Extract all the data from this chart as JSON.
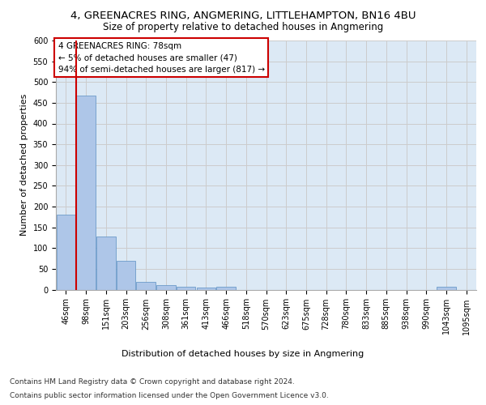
{
  "title_line1": "4, GREENACRES RING, ANGMERING, LITTLEHAMPTON, BN16 4BU",
  "title_line2": "Size of property relative to detached houses in Angmering",
  "xlabel": "Distribution of detached houses by size in Angmering",
  "ylabel": "Number of detached properties",
  "bar_labels": [
    "46sqm",
    "98sqm",
    "151sqm",
    "203sqm",
    "256sqm",
    "308sqm",
    "361sqm",
    "413sqm",
    "466sqm",
    "518sqm",
    "570sqm",
    "623sqm",
    "675sqm",
    "728sqm",
    "780sqm",
    "833sqm",
    "885sqm",
    "938sqm",
    "990sqm",
    "1043sqm",
    "1095sqm"
  ],
  "bar_values": [
    180,
    468,
    127,
    70,
    18,
    11,
    7,
    5,
    6,
    0,
    0,
    0,
    0,
    0,
    0,
    0,
    0,
    0,
    0,
    6,
    0
  ],
  "bar_color": "#aec6e8",
  "bar_edge_color": "#5a8fc2",
  "highlight_line_color": "#cc0000",
  "annotation_text": "4 GREENACRES RING: 78sqm\n← 5% of detached houses are smaller (47)\n94% of semi-detached houses are larger (817) →",
  "annotation_box_color": "#ffffff",
  "annotation_box_edge": "#cc0000",
  "ylim": [
    0,
    600
  ],
  "yticks": [
    0,
    50,
    100,
    150,
    200,
    250,
    300,
    350,
    400,
    450,
    500,
    550,
    600
  ],
  "grid_color": "#cccccc",
  "background_color": "#dce9f5",
  "footer_line1": "Contains HM Land Registry data © Crown copyright and database right 2024.",
  "footer_line2": "Contains public sector information licensed under the Open Government Licence v3.0.",
  "title_fontsize": 9.5,
  "subtitle_fontsize": 8.5,
  "axis_label_fontsize": 8,
  "tick_fontsize": 7,
  "annotation_fontsize": 7.5,
  "footer_fontsize": 6.5
}
